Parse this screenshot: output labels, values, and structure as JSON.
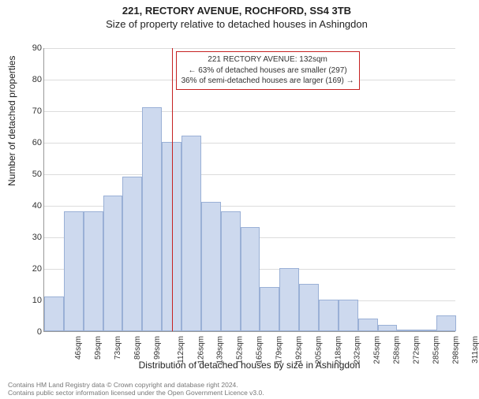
{
  "chart": {
    "type": "histogram",
    "title_main": "221, RECTORY AVENUE, ROCHFORD, SS4 3TB",
    "title_sub": "Size of property relative to detached houses in Ashingdon",
    "title_fontsize": 13,
    "y_axis_label": "Number of detached properties",
    "x_axis_label": "Distribution of detached houses by size in Ashingdon",
    "label_fontsize": 12,
    "ylim": [
      0,
      90
    ],
    "ytick_step": 10,
    "yticks": [
      0,
      10,
      20,
      30,
      40,
      50,
      60,
      70,
      80,
      90
    ],
    "x_categories": [
      "46sqm",
      "59sqm",
      "73sqm",
      "86sqm",
      "99sqm",
      "112sqm",
      "126sqm",
      "139sqm",
      "152sqm",
      "165sqm",
      "179sqm",
      "192sqm",
      "205sqm",
      "218sqm",
      "232sqm",
      "245sqm",
      "258sqm",
      "272sqm",
      "285sqm",
      "298sqm",
      "311sqm"
    ],
    "values": [
      11,
      38,
      38,
      43,
      49,
      71,
      60,
      62,
      41,
      38,
      33,
      14,
      20,
      15,
      10,
      10,
      4,
      2,
      0,
      0,
      5
    ],
    "bar_fill": "#cdd9ee",
    "bar_border": "#9ab0d6",
    "background_color": "#ffffff",
    "grid_color": "#dcdcdc",
    "axis_color": "#999999",
    "reference_line": {
      "color": "#c62222",
      "bin_index": 6.5
    },
    "info_box": {
      "border_color": "#c62222",
      "bg_color": "#ffffff",
      "line1": "221 RECTORY AVENUE: 132sqm",
      "line2": "← 63% of detached houses are smaller (297)",
      "line3": "36% of semi-detached houses are larger (169) →"
    }
  },
  "footer": {
    "line1": "Contains HM Land Registry data © Crown copyright and database right 2024.",
    "line2": "Contains public sector information licensed under the Open Government Licence v3.0.",
    "color": "#777777",
    "fontsize": 8.5
  }
}
